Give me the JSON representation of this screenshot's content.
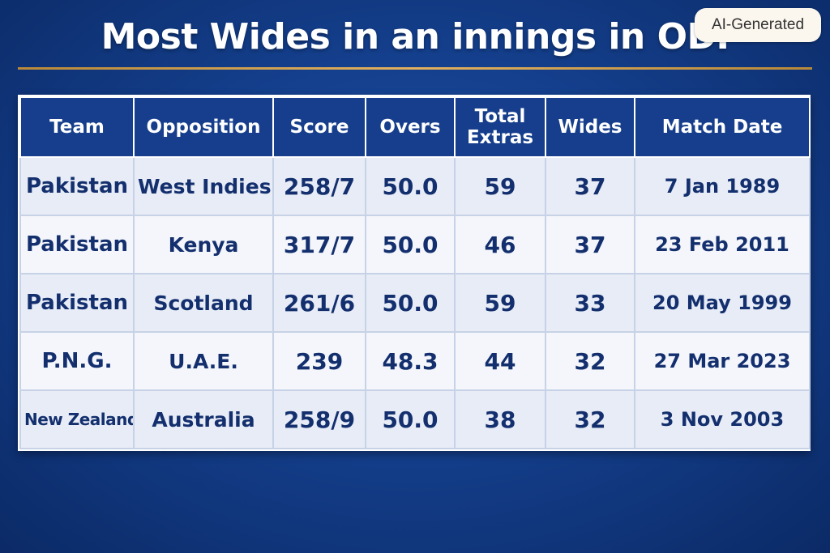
{
  "title": "Most Wides in an innings in ODI",
  "badge": "AI-Generated",
  "table": {
    "headers": [
      "Team",
      "Opposition",
      "Score",
      "Overs",
      "Total Extras",
      "Wides",
      "Match Date"
    ],
    "rows": [
      {
        "team": "Pakistan",
        "opposition": "West Indies",
        "score": "258/7",
        "overs": "50.0",
        "extras": "59",
        "wides": "37",
        "date": "7 Jan 1989"
      },
      {
        "team": "Pakistan",
        "opposition": "Kenya",
        "score": "317/7",
        "overs": "50.0",
        "extras": "46",
        "wides": "37",
        "date": "23 Feb 2011"
      },
      {
        "team": "Pakistan",
        "opposition": "Scotland",
        "score": "261/6",
        "overs": "50.0",
        "extras": "59",
        "wides": "33",
        "date": "20 May 1999"
      },
      {
        "team": "P.N.G.",
        "opposition": "U.A.E.",
        "score": "239",
        "overs": "48.3",
        "extras": "44",
        "wides": "32",
        "date": "27 Mar 2023"
      },
      {
        "team": "New Zealand",
        "opposition": "Australia",
        "score": "258/9",
        "overs": "50.0",
        "extras": "38",
        "wides": "32",
        "date": "3 Nov 2003"
      }
    ]
  }
}
